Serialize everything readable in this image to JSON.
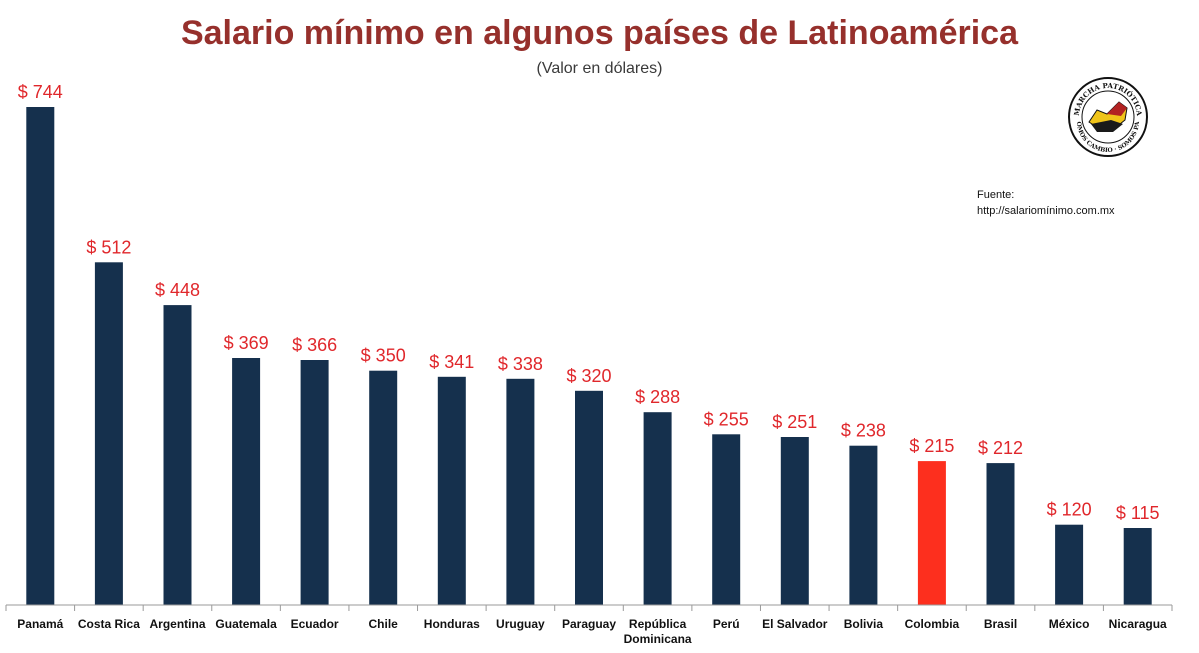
{
  "chart_data": {
    "type": "bar",
    "title": "Salario mínimo en algunos países de Latinoamérica",
    "subtitle": "(Valor en dólares)",
    "value_prefix": "$ ",
    "categories": [
      "Panamá",
      "Costa Rica",
      "Argentina",
      "Guatemala",
      "Ecuador",
      "Chile",
      "Honduras",
      "Uruguay",
      "Paraguay",
      "República Dominicana",
      "Perú",
      "El Salvador",
      "Bolivia",
      "Colombia",
      "Brasil",
      "México",
      "Nicaragua"
    ],
    "category_lines": [
      [
        "Panamá"
      ],
      [
        "Costa Rica"
      ],
      [
        "Argentina"
      ],
      [
        "Guatemala"
      ],
      [
        "Ecuador"
      ],
      [
        "Chile"
      ],
      [
        "Honduras"
      ],
      [
        "Uruguay"
      ],
      [
        "Paraguay"
      ],
      [
        "República",
        "Dominicana"
      ],
      [
        "Perú"
      ],
      [
        "El Salvador"
      ],
      [
        "Bolivia"
      ],
      [
        "Colombia"
      ],
      [
        "Brasil"
      ],
      [
        "México"
      ],
      [
        "Nicaragua"
      ]
    ],
    "values": [
      744,
      512,
      448,
      369,
      366,
      350,
      341,
      338,
      320,
      288,
      255,
      251,
      238,
      215,
      212,
      120,
      115
    ],
    "highlight_index": 13,
    "bar_color": "#15304d",
    "highlight_color": "#fd2f1e",
    "label_color": "#e0272b",
    "ylim": [
      0,
      744
    ],
    "xlabel": "",
    "ylabel": "",
    "grid": false
  },
  "source": {
    "label": "Fuente:",
    "url": "http://salariomínimo.com.mx"
  },
  "logo": {
    "top_text": "MARCHA PATRIÓTICA",
    "bottom_text": "SOMOS CAMBIO · SOMOS PAZ"
  }
}
